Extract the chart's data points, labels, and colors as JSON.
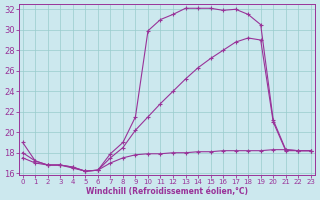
{
  "xlabel": "Windchill (Refroidissement éolien,°C)",
  "bg_color": "#cce8ee",
  "line_color": "#993399",
  "grid_color": "#99cccc",
  "xlim": [
    -0.3,
    23.3
  ],
  "ylim": [
    15.8,
    32.5
  ],
  "yticks": [
    16,
    18,
    20,
    22,
    24,
    26,
    28,
    30,
    32
  ],
  "xticks": [
    0,
    1,
    2,
    3,
    4,
    5,
    6,
    7,
    8,
    9,
    10,
    11,
    12,
    13,
    14,
    15,
    16,
    17,
    18,
    19,
    20,
    21,
    22,
    23
  ],
  "curve_top_x": [
    0,
    1,
    2,
    3,
    4,
    5,
    6,
    7,
    8,
    9,
    10,
    11,
    12,
    13,
    14,
    15,
    16,
    17,
    18,
    19,
    20,
    21,
    22,
    23
  ],
  "curve_top_y": [
    19.0,
    17.2,
    16.8,
    16.8,
    16.6,
    16.2,
    16.3,
    17.9,
    19.0,
    21.5,
    29.9,
    31.0,
    31.5,
    32.1,
    32.1,
    32.1,
    31.9,
    32.0,
    31.5,
    30.5,
    21.2,
    18.3,
    18.2,
    18.2
  ],
  "curve_mid_x": [
    0,
    1,
    2,
    3,
    4,
    5,
    6,
    7,
    8,
    9,
    10,
    11,
    12,
    13,
    14,
    15,
    16,
    17,
    18,
    19,
    20,
    21,
    22,
    23
  ],
  "curve_mid_y": [
    18.0,
    17.2,
    16.8,
    16.8,
    16.6,
    16.2,
    16.3,
    17.5,
    18.5,
    20.2,
    21.5,
    22.8,
    24.0,
    25.2,
    26.3,
    27.2,
    28.0,
    28.8,
    29.2,
    29.0,
    21.0,
    18.2,
    18.2,
    18.2
  ],
  "curve_flat_x": [
    0,
    1,
    2,
    3,
    4,
    5,
    6,
    7,
    8,
    9,
    10,
    11,
    12,
    13,
    14,
    15,
    16,
    17,
    18,
    19,
    20,
    21,
    22,
    23
  ],
  "curve_flat_y": [
    17.5,
    17.0,
    16.8,
    16.8,
    16.5,
    16.2,
    16.3,
    17.0,
    17.5,
    17.8,
    17.9,
    17.9,
    18.0,
    18.0,
    18.1,
    18.1,
    18.2,
    18.2,
    18.2,
    18.2,
    18.3,
    18.3,
    18.2,
    18.2
  ]
}
